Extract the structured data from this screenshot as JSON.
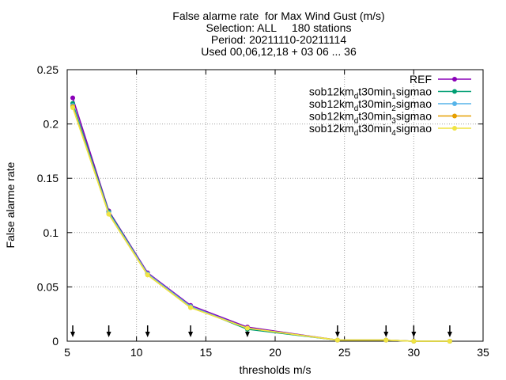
{
  "title_lines": [
    "False alarme rate  for Max Wind Gust (m/s)",
    "Selection: ALL     180 stations",
    "Period: 20211110-20211114",
    "Used 00,06,12,18 + 03 06 ... 36"
  ],
  "chart_data": {
    "type": "line",
    "xlabel": "thresholds m/s",
    "ylabel": "False alarme rate",
    "xlim": [
      5,
      35
    ],
    "ylim": [
      0,
      0.25
    ],
    "x_ticks": [
      5,
      10,
      15,
      20,
      25,
      30,
      35
    ],
    "y_ticks": [
      0,
      0.05,
      0.1,
      0.15,
      0.2,
      0.25
    ],
    "x_tick_labels": [
      "5",
      "10",
      "15",
      "20",
      "25",
      "30",
      "35"
    ],
    "y_tick_labels": [
      "0",
      "0.05",
      "0.1",
      "0.15",
      "0.2",
      "0.25"
    ],
    "grid": true,
    "legend_position": "top-right",
    "x": [
      5.4,
      8.0,
      10.8,
      13.9,
      18.0,
      24.5,
      28.0,
      30.0,
      32.6
    ],
    "series": [
      {
        "name": "REF",
        "name_parts": [
          "REF"
        ],
        "color": "#8a00b8",
        "values": [
          0.224,
          0.12,
          0.063,
          0.033,
          0.013,
          0.001,
          0.001,
          0.0,
          0.0
        ]
      },
      {
        "name": "sob12km_dt30min_1sigmao",
        "name_parts": [
          "sob12km",
          "d",
          "t30min",
          "1",
          "sigmao"
        ],
        "color": "#009e73",
        "values": [
          0.219,
          0.119,
          0.062,
          0.032,
          0.011,
          0.001,
          0.001,
          0.0,
          0.0
        ]
      },
      {
        "name": "sob12km_dt30min_2sigmao",
        "name_parts": [
          "sob12km",
          "d",
          "t30min",
          "2",
          "sigmao"
        ],
        "color": "#56b4e9",
        "values": [
          0.217,
          0.118,
          0.062,
          0.032,
          0.012,
          0.001,
          0.001,
          0.0,
          0.0
        ]
      },
      {
        "name": "sob12km_dt30min_3sigmao",
        "name_parts": [
          "sob12km",
          "d",
          "t30min",
          "3",
          "sigmao"
        ],
        "color": "#e69f00",
        "values": [
          0.216,
          0.117,
          0.061,
          0.031,
          0.012,
          0.001,
          0.001,
          0.0,
          0.0
        ]
      },
      {
        "name": "sob12km_dt30min_4sigmao",
        "name_parts": [
          "sob12km",
          "d",
          "t30min",
          "4",
          "sigmao"
        ],
        "color": "#f0e442",
        "values": [
          0.215,
          0.117,
          0.061,
          0.031,
          0.012,
          0.001,
          0.001,
          0.0,
          0.0
        ]
      }
    ],
    "threshold_markers": [
      5.4,
      8.0,
      10.8,
      13.9,
      18.0,
      24.5,
      28.0,
      30.0,
      32.6
    ]
  }
}
